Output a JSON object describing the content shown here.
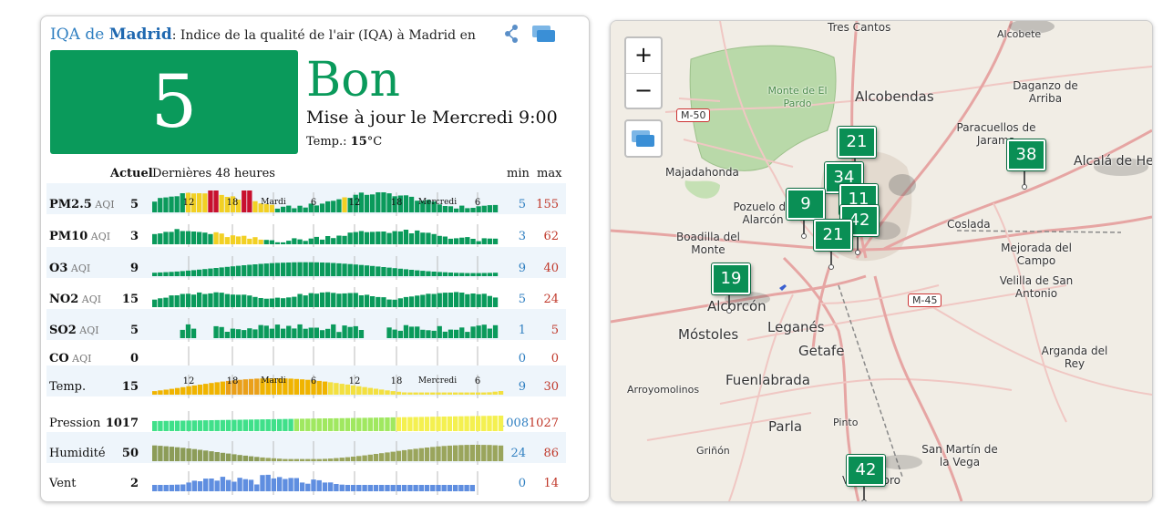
{
  "header": {
    "title_prefix": "IQA de ",
    "city": "Madrid",
    "title_suffix": ": Indice de la qualité de l'air (IQA) à Madrid en"
  },
  "aqi": {
    "value": "5",
    "level": "Bon",
    "color": "#0a9a5b"
  },
  "updated": "Mise à jour le Mercredi 9:00",
  "temperature": {
    "label": "Temp.: ",
    "value": "15",
    "unit": "°C"
  },
  "table_header": {
    "current": "Actuel",
    "history": "Dernières 48 heures",
    "min": "min",
    "max": "max"
  },
  "time_axis": [
    {
      "label": "12",
      "small": false
    },
    {
      "label": "18",
      "small": false
    },
    {
      "label": "Mardi",
      "small": true
    },
    {
      "label": "6",
      "small": false
    },
    {
      "label": "12",
      "small": false
    },
    {
      "label": "18",
      "small": false
    },
    {
      "label": "Mercredi",
      "small": true
    },
    {
      "label": "6",
      "small": false
    }
  ],
  "rows": [
    {
      "name": "PM2.5",
      "unit": "AQI",
      "current": "5",
      "min": "5",
      "max": "155"
    },
    {
      "name": "PM10",
      "unit": "AQI",
      "current": "3",
      "min": "3",
      "max": "62"
    },
    {
      "name": "O3",
      "unit": "AQI",
      "current": "9",
      "min": "9",
      "max": "40"
    },
    {
      "name": "NO2",
      "unit": "AQI",
      "current": "15",
      "min": "5",
      "max": "24"
    },
    {
      "name": "SO2",
      "unit": "AQI",
      "current": "5",
      "min": "1",
      "max": "5"
    },
    {
      "name": "CO",
      "unit": "AQI",
      "current": "0",
      "min": "0",
      "max": "0"
    },
    {
      "name": "Temp.",
      "unit": "",
      "current": "15",
      "min": "9",
      "max": "30"
    },
    {
      "name": "Pression",
      "unit": "",
      "current": "1017",
      "min": "1008",
      "max": "1027"
    },
    {
      "name": "Humidité",
      "unit": "",
      "current": "50",
      "min": "24",
      "max": "86"
    },
    {
      "name": "Vent",
      "unit": "",
      "current": "2",
      "min": "0",
      "max": "14"
    }
  ],
  "map": {
    "zoom_in": "+",
    "zoom_out": "−",
    "places": [
      "Tres Cantos",
      "Alcobendas",
      "Daganzo de Arriba",
      "Paracuellos de Jarama",
      "Alcalá de He",
      "Monte de El Pardo",
      "Majadahonda",
      "Pozuelo de Alarcón",
      "Boadilla del Monte",
      "Coslada",
      "Mejorada del Campo",
      "Velilla de San Antonio",
      "Alcorcón",
      "Móstoles",
      "Leganés",
      "Getafe",
      "Fuenlabrada",
      "Arroyomolinos",
      "Parla",
      "Pinto",
      "Arganda del Rey",
      "Griñón",
      "San Martín de la Vega",
      "Valdemoro",
      "Alcobete"
    ],
    "roads": [
      "M-50",
      "M-45"
    ],
    "markers": [
      "21",
      "34",
      "9",
      "11",
      "42",
      "21",
      "38",
      "19",
      "42"
    ]
  }
}
